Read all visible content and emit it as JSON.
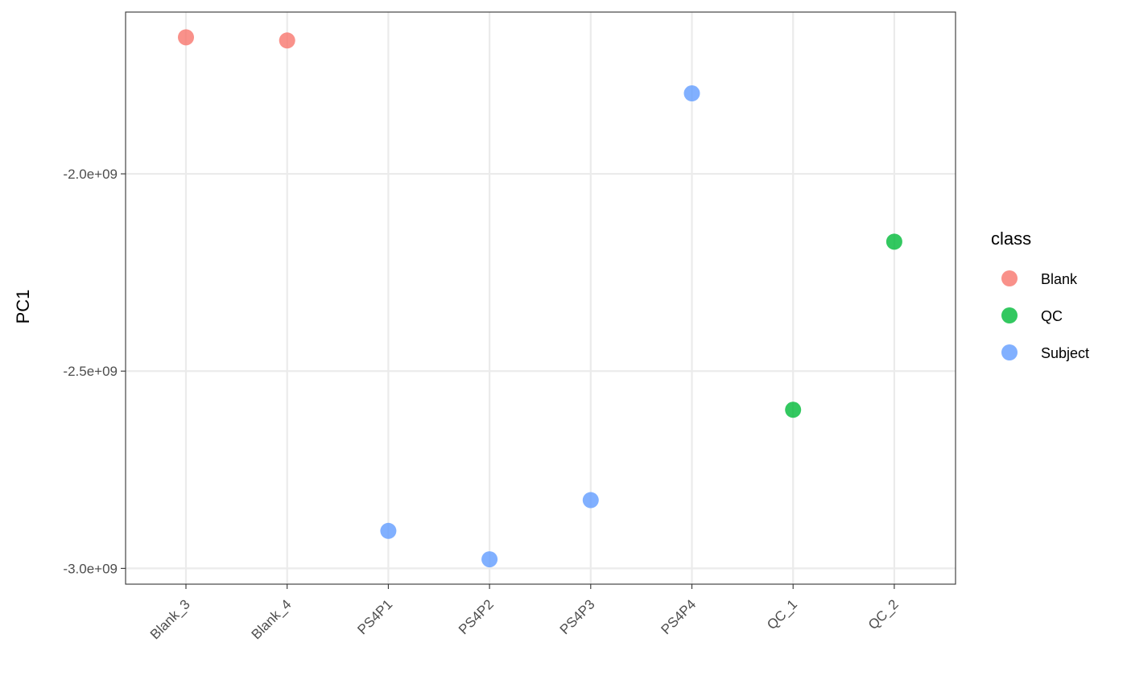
{
  "chart_data": {
    "type": "scatter",
    "title": "",
    "xlabel": "",
    "ylabel": "PC1",
    "categories": [
      "Blank_3",
      "Blank_4",
      "PS4P1",
      "PS4P2",
      "PS4P3",
      "PS4P4",
      "QC_1",
      "QC_2"
    ],
    "points": [
      {
        "x": "Blank_3",
        "y": -1654000000,
        "class": "Blank"
      },
      {
        "x": "Blank_4",
        "y": -1662000000,
        "class": "Blank"
      },
      {
        "x": "PS4P1",
        "y": -2905000000,
        "class": "Subject"
      },
      {
        "x": "PS4P2",
        "y": -2977000000,
        "class": "Subject"
      },
      {
        "x": "PS4P3",
        "y": -2827000000,
        "class": "Subject"
      },
      {
        "x": "PS4P4",
        "y": -1796000000,
        "class": "Subject"
      },
      {
        "x": "QC_1",
        "y": -2598000000,
        "class": "QC"
      },
      {
        "x": "QC_2",
        "y": -2172000000,
        "class": "QC"
      }
    ],
    "ylim": [
      -3040000000,
      -1590000000
    ],
    "yticks": [
      -3000000000,
      -2500000000,
      -2000000000
    ],
    "ytick_labels": [
      "-3.0e+09",
      "-2.5e+09",
      "-2.0e+09"
    ],
    "grid": true,
    "legend": {
      "title": "class",
      "placement": "right",
      "entries": [
        {
          "label": "Blank",
          "color": "#F8766D"
        },
        {
          "label": "QC",
          "color": "#00BA38"
        },
        {
          "label": "Subject",
          "color": "#619CFF"
        }
      ]
    }
  }
}
